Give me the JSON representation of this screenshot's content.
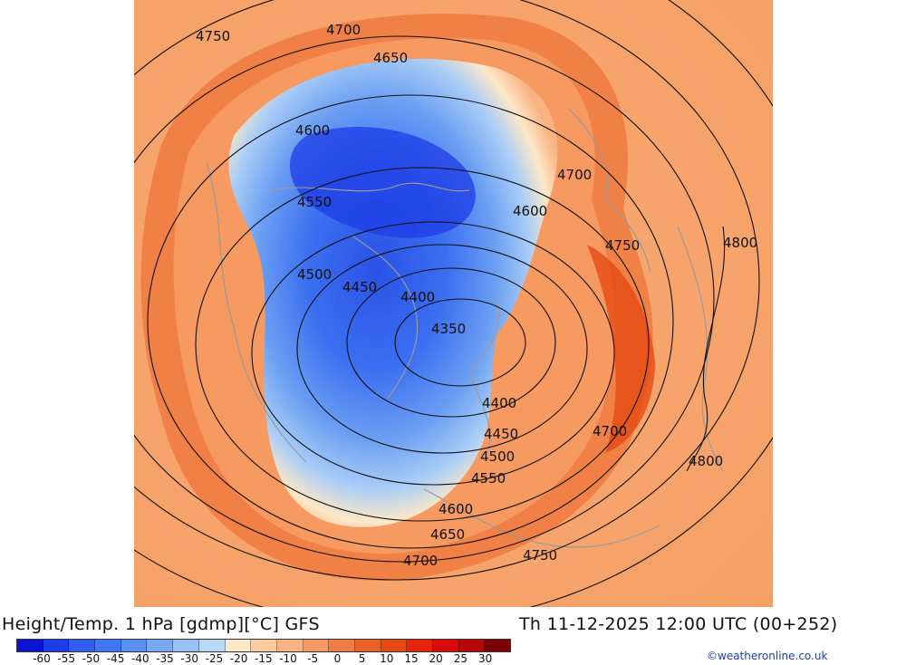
{
  "title": "Height/Temp. 1 hPa [gdmp][°C] GFS",
  "datetime": "Th 11-12-2025 12:00 UTC (00+252)",
  "credit": "©weatheronline.co.uk",
  "contour_labels": [
    "4750",
    "4700",
    "4650",
    "4600",
    "4550",
    "4500",
    "4450",
    "4400",
    "4350",
    "4700",
    "4600",
    "4750",
    "4800",
    "4400",
    "4450",
    "4500",
    "4550",
    "4600",
    "4650",
    "4700",
    "4750",
    "4700",
    "4800"
  ],
  "colorbar": {
    "tick_labels": [
      "-60",
      "-55",
      "-50",
      "-45",
      "-40",
      "-35",
      "-30",
      "-25",
      "-20",
      "-15",
      "-10",
      "-5",
      "0",
      "5",
      "10",
      "15",
      "20",
      "25",
      "30"
    ],
    "colors": [
      "#0a14d2",
      "#1e3ce6",
      "#2e5ef0",
      "#3f78f2",
      "#5890ef",
      "#78a8f0",
      "#98c2f4",
      "#b8daf8",
      "#fde8c8",
      "#fccca0",
      "#f9b281",
      "#f59a62",
      "#f07d45",
      "#ea6128",
      "#e74713",
      "#e4250c",
      "#d80b09",
      "#b60606",
      "#7c0404"
    ]
  }
}
